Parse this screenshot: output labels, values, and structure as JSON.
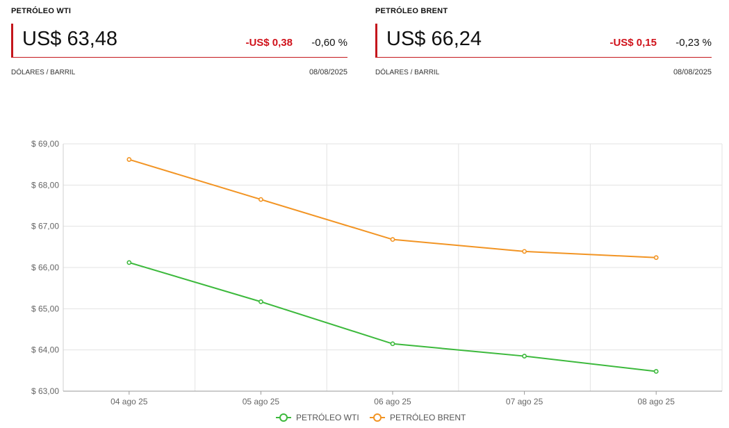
{
  "quotes": {
    "wti": {
      "title": "PETRÓLEO WTI",
      "price": "US$ 63,48",
      "change": "-US$ 0,38",
      "percent": "-0,60 %",
      "unit": "DÓLARES / BARRIL",
      "date": "08/08/2025"
    },
    "brent": {
      "title": "PETRÓLEO BRENT",
      "price": "US$ 66,24",
      "change": "-US$ 0,15",
      "percent": "-0,23 %",
      "unit": "DÓLARES / BARRIL",
      "date": "08/08/2025"
    }
  },
  "colors": {
    "accent": "#c4161c",
    "negative": "#d0121b",
    "wti": "#3cb93c",
    "brent": "#f29423"
  },
  "chart_data": {
    "type": "line",
    "categories": [
      "04 ago 25",
      "05 ago 25",
      "06 ago 25",
      "07 ago 25",
      "08 ago 25"
    ],
    "series": [
      {
        "name": "PETRÓLEO WTI",
        "color": "#3cb93c",
        "values": [
          66.12,
          65.17,
          64.15,
          63.85,
          63.48
        ]
      },
      {
        "name": "PETRÓLEO BRENT",
        "color": "#f29423",
        "values": [
          68.62,
          67.65,
          66.68,
          66.39,
          66.24
        ]
      }
    ],
    "ylim": [
      63,
      69
    ],
    "yticks": [
      "$ 63,00",
      "$ 64,00",
      "$ 65,00",
      "$ 66,00",
      "$ 67,00",
      "$ 68,00",
      "$ 69,00"
    ],
    "grid": true,
    "legend": "bottom-center"
  }
}
